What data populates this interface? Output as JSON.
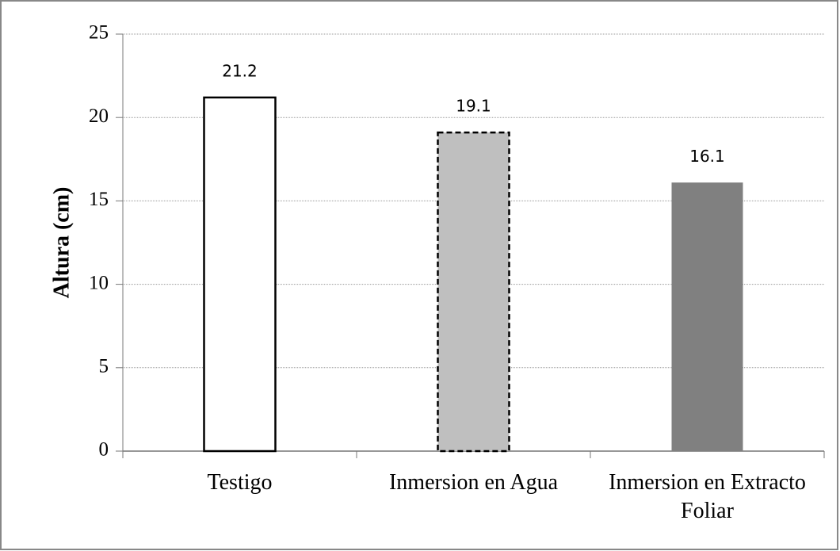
{
  "chart_data": {
    "type": "bar",
    "y_label": "Altura (cm)",
    "categories": [
      "Testigo",
      "Inmersion en Agua",
      "Inmersion en Extracto Foliar"
    ],
    "values": [
      21.2,
      19.1,
      16.1
    ],
    "colors": [
      "#ffffff",
      "#bfbfbf",
      "#808080"
    ],
    "edge_styles": [
      "solid",
      "dashed",
      "none"
    ],
    "ylim": [
      0,
      25
    ],
    "yticks": [
      0,
      5,
      10,
      15,
      20,
      25
    ],
    "grid": true
  }
}
